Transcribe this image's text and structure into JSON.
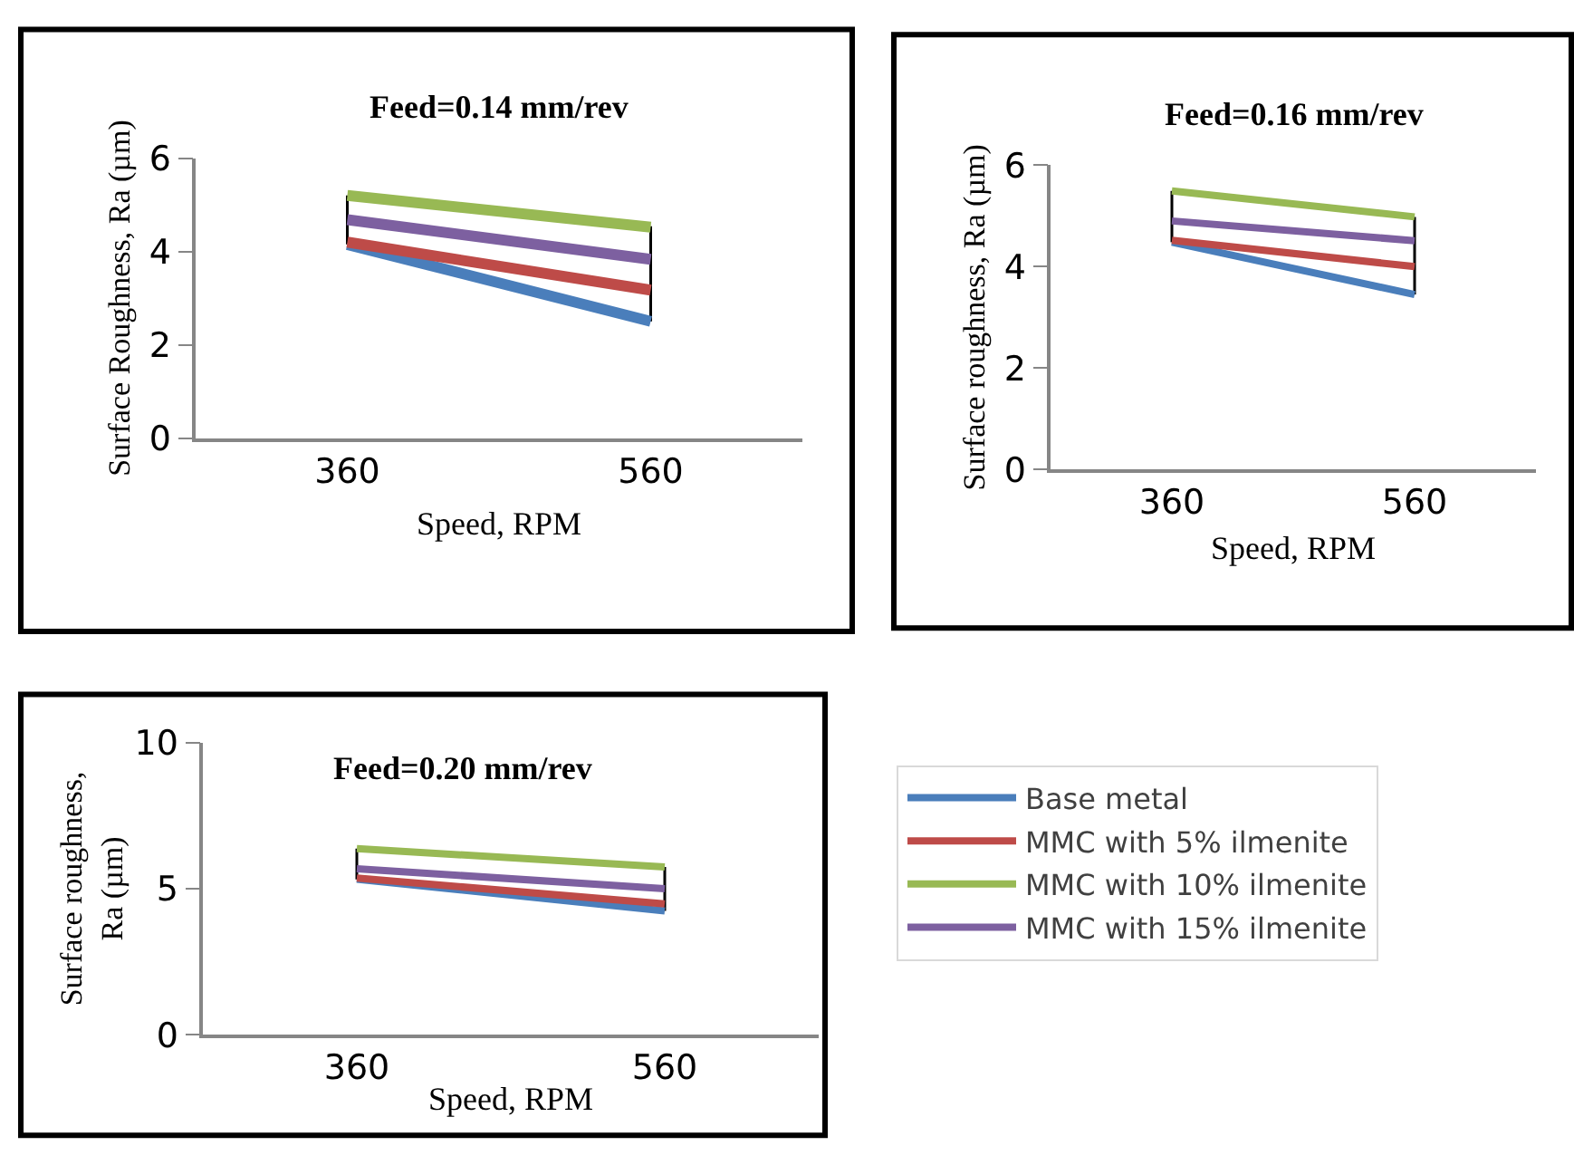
{
  "chart_data": [
    {
      "type": "line",
      "title": "Feed=0.14 mm/rev",
      "xlabel": "Speed, RPM",
      "ylabel": "Surface Roughness, Ra (µm)",
      "categories": [
        "360",
        "560"
      ],
      "ylim": [
        0,
        6
      ],
      "yticks": [
        0,
        2,
        4,
        6
      ],
      "series": [
        {
          "color": "#4a7ebb",
          "values": [
            4.15,
            2.5
          ],
          "errors": [
            [
              4.15,
              5.2
            ],
            [
              2.5,
              4.54
            ]
          ]
        },
        {
          "color": "#be4b48",
          "values": [
            4.2,
            3.17
          ]
        },
        {
          "color": "#98b954",
          "values": [
            5.2,
            4.52
          ]
        },
        {
          "color": "#7d60a0",
          "values": [
            4.68,
            3.83
          ]
        }
      ]
    },
    {
      "type": "line",
      "title": "Feed=0.16 mm/rev",
      "xlabel": "Speed, RPM",
      "ylabel": "Surface roughness, Ra (µm)",
      "categories": [
        "360",
        "560"
      ],
      "ylim": [
        0,
        6
      ],
      "yticks": [
        0,
        2,
        4,
        6
      ],
      "series": [
        {
          "color": "#4a7ebb",
          "values": [
            4.48,
            3.45
          ],
          "errors": [
            [
              4.48,
              5.49
            ],
            [
              3.45,
              4.98
            ]
          ]
        },
        {
          "color": "#be4b48",
          "values": [
            4.52,
            4.0
          ]
        },
        {
          "color": "#98b954",
          "values": [
            5.49,
            4.98
          ]
        },
        {
          "color": "#7d60a0",
          "values": [
            4.9,
            4.51
          ]
        }
      ]
    },
    {
      "type": "line",
      "title": "Feed=0.20 mm/rev",
      "xlabel": "Speed, RPM",
      "ylabel": "Surface roughness,\nRa (µm)",
      "categories": [
        "360",
        "560"
      ],
      "ylim": [
        0,
        10
      ],
      "yticks": [
        0,
        5,
        10
      ],
      "legend": "right",
      "series": [
        {
          "name": "Base metal",
          "color": "#4a7ebb",
          "values": [
            5.32,
            4.24
          ],
          "errors": [
            [
              5.32,
              6.37
            ],
            [
              4.24,
              5.74
            ]
          ]
        },
        {
          "name": "MMC with 5% ilmenite",
          "color": "#be4b48",
          "values": [
            5.36,
            4.48
          ]
        },
        {
          "name": "MMC with 10% ilmenite",
          "color": "#98b954",
          "values": [
            6.37,
            5.74
          ]
        },
        {
          "name": "MMC with 15% ilmenite",
          "color": "#7d60a0",
          "values": [
            5.68,
            5.0
          ]
        }
      ]
    }
  ]
}
